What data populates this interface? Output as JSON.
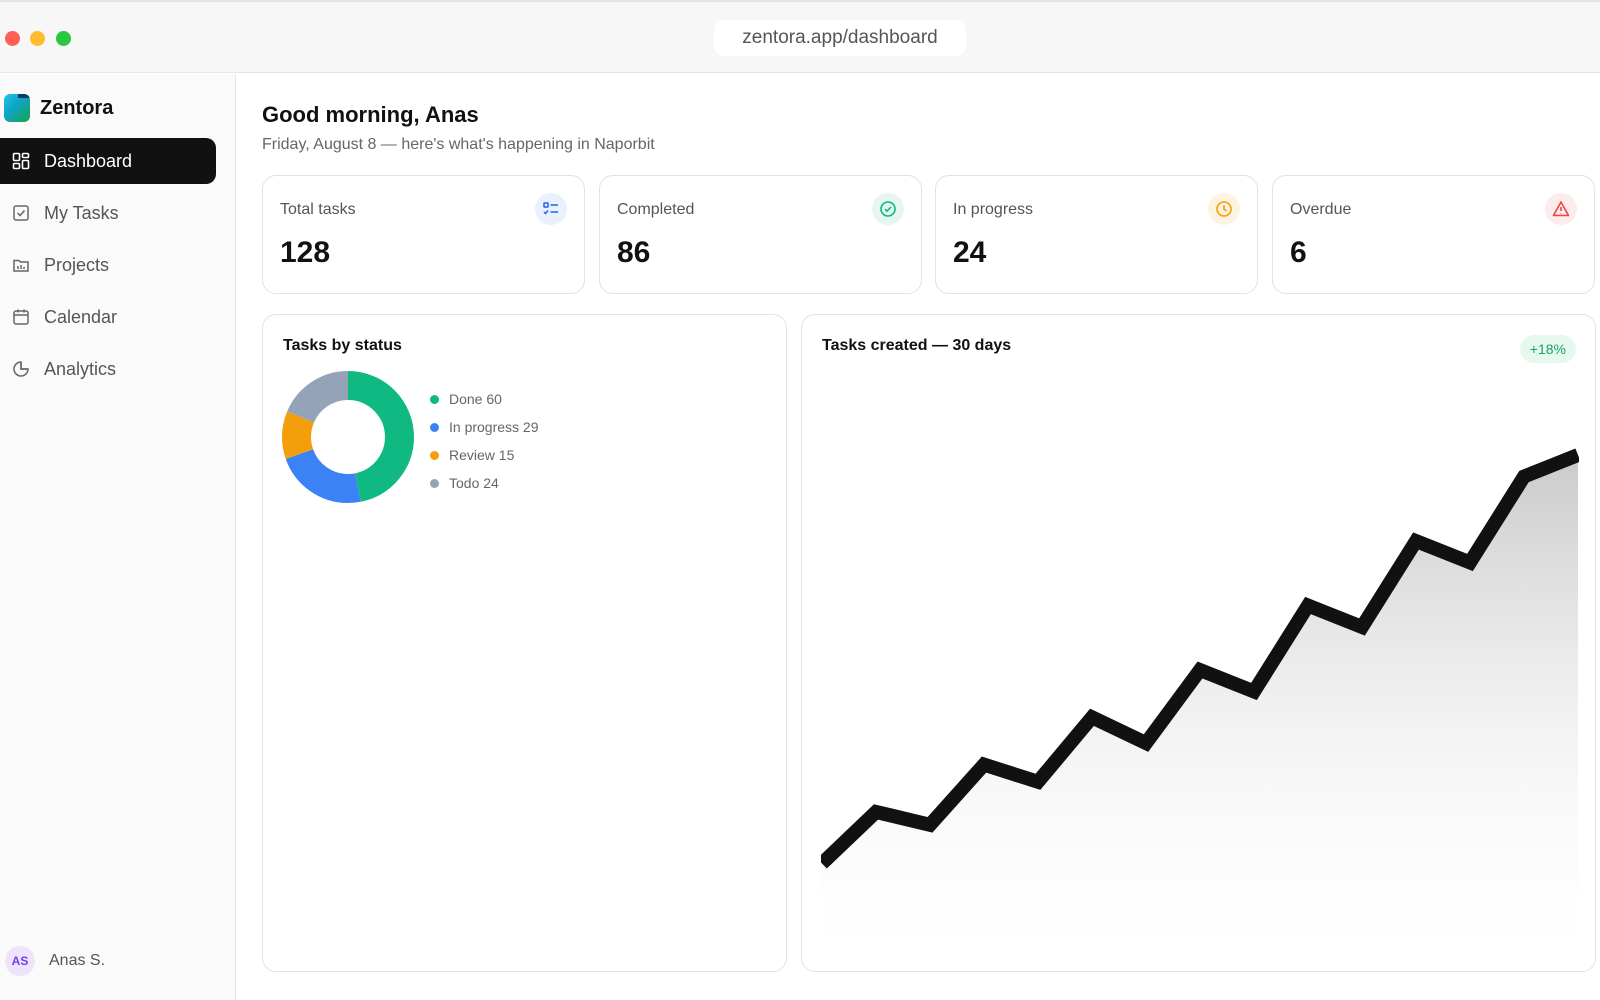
{
  "window": {
    "url": "zentora.app/dashboard"
  },
  "sidebar": {
    "brand": "Zentora",
    "items": [
      {
        "label": "Dashboard",
        "icon": "grid-icon",
        "active": true
      },
      {
        "label": "My Tasks",
        "icon": "checkbox-icon",
        "active": false
      },
      {
        "label": "Projects",
        "icon": "folder-icon",
        "active": false
      },
      {
        "label": "Calendar",
        "icon": "calendar-icon",
        "active": false
      },
      {
        "label": "Analytics",
        "icon": "pie-chart-icon",
        "active": false
      }
    ],
    "user": {
      "initials": "AS",
      "name": "Anas S."
    }
  },
  "header": {
    "greeting": "Good morning, Anas",
    "subtitle": "Friday, August 8 — here's what's happening in Naporbit"
  },
  "stats": [
    {
      "label": "Total tasks",
      "value": "128",
      "icon": "list-check-icon",
      "color": "#2563eb",
      "bg": "#e8f1fd"
    },
    {
      "label": "Completed",
      "value": "86",
      "icon": "check-circle-icon",
      "color": "#10b981",
      "bg": "#e6f7ef"
    },
    {
      "label": "In progress",
      "value": "24",
      "icon": "clock-icon",
      "color": "#f59e0b",
      "bg": "#fdf3e1"
    },
    {
      "label": "Overdue",
      "value": "6",
      "icon": "alert-triangle-icon",
      "color": "#ef4444",
      "bg": "#fdecec"
    }
  ],
  "status_panel": {
    "title": "Tasks by status",
    "legend": [
      "Done 60",
      "In progress 29",
      "Review 15",
      "Todo 24"
    ]
  },
  "trend_panel": {
    "title": "Tasks created — 30 days",
    "badge": "+18%"
  },
  "chart_data": [
    {
      "type": "pie",
      "title": "Tasks by status",
      "categories": [
        "Done",
        "In progress",
        "Review",
        "Todo"
      ],
      "values": [
        60,
        29,
        15,
        24
      ],
      "colors": [
        "#10b981",
        "#3b82f6",
        "#f59e0b",
        "#94a3b8"
      ],
      "donut": true
    },
    {
      "type": "area",
      "title": "Tasks created — 30 days",
      "values": [
        0.05,
        0.17,
        0.14,
        0.28,
        0.24,
        0.39,
        0.33,
        0.5,
        0.45,
        0.65,
        0.6,
        0.8,
        0.75,
        0.95,
        1.0
      ],
      "ylim": [
        0,
        1.0
      ],
      "grid": false,
      "line_color": "#111111"
    }
  ]
}
